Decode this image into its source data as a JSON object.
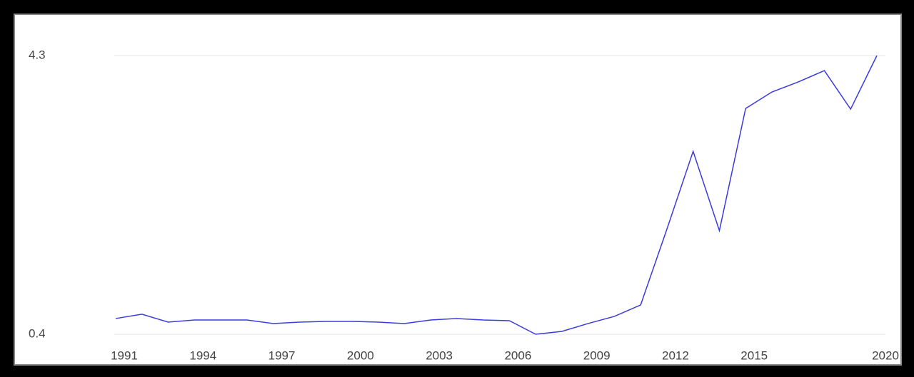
{
  "chart_data": {
    "type": "line",
    "categories": [
      "1991",
      null,
      null,
      "1994",
      null,
      null,
      "1997",
      null,
      null,
      "2000",
      null,
      null,
      "2003",
      null,
      null,
      "2006",
      null,
      null,
      "2009",
      null,
      null,
      "2012",
      null,
      null,
      "2015",
      null,
      null,
      null,
      null,
      "2020"
    ],
    "series": [
      {
        "color": "#3a3ae0",
        "values": [
          0.62,
          0.68,
          0.57,
          0.6,
          0.6,
          0.6,
          0.55,
          0.57,
          0.58,
          0.58,
          0.57,
          0.55,
          0.6,
          0.62,
          0.6,
          0.59,
          0.4,
          0.44,
          0.55,
          0.65,
          0.81,
          1.87,
          2.96,
          1.85,
          3.56,
          3.79,
          3.93,
          4.09,
          3.55,
          4.3
        ]
      }
    ],
    "ylim": [
      0.4,
      4.3
    ],
    "yticks": [
      0.4,
      4.3
    ],
    "grid": true
  }
}
